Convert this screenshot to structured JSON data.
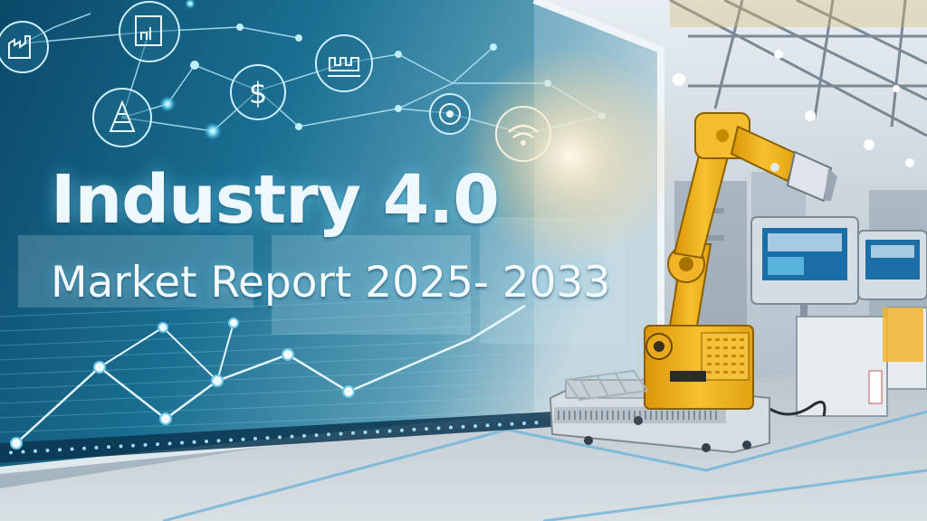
{
  "headline": {
    "title": "Industry 4.0",
    "subtitle": "Market Report 2025- 2033"
  },
  "icons": [
    "factory-icon",
    "document-chart-icon",
    "gear-robot-icon",
    "dollar-icon",
    "conveyor-icon",
    "target-icon",
    "wifi-icon"
  ],
  "colors": {
    "panel_dark": "#0c3f5c",
    "panel_teal": "#1d7ea0",
    "glow": "#7fe3ff",
    "robot_yellow": "#f2b21b",
    "floor": "#c9d2d8"
  }
}
